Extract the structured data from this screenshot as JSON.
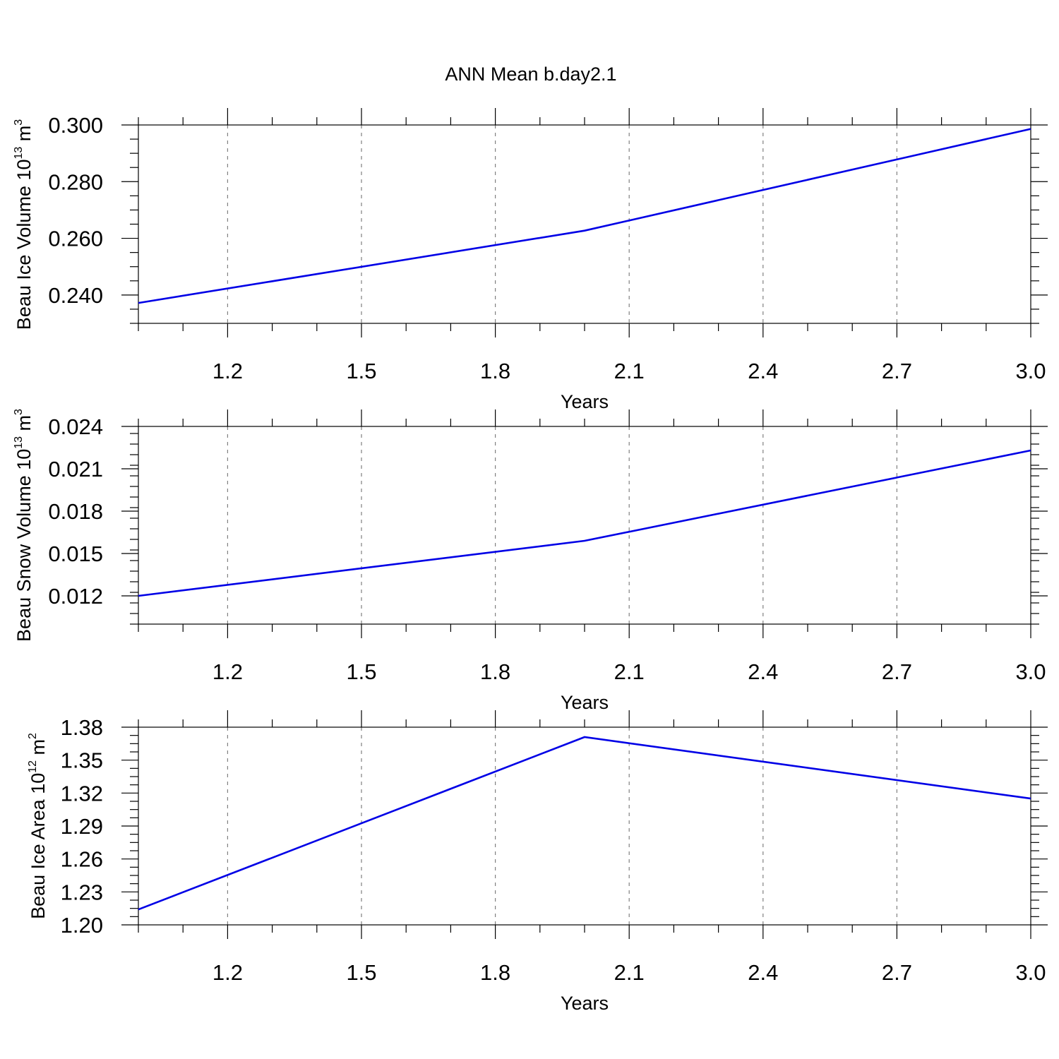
{
  "figure": {
    "title": "ANN Mean b.day2.1"
  },
  "colors": {
    "series": "#0000e6",
    "axis": "#000000",
    "grid": "#808080"
  },
  "chart_data": [
    {
      "type": "line",
      "title": "",
      "xlabel": "Years",
      "ylabel": {
        "base": "Beau Ice Volume 10",
        "exponent": "13",
        "unit": " m",
        "unit_exponent": "3"
      },
      "xlim": [
        1.0,
        3.0
      ],
      "ylim": [
        0.23,
        0.3
      ],
      "x_ticks": [
        "1.2",
        "1.5",
        "1.8",
        "2.1",
        "2.4",
        "2.7",
        "3.0"
      ],
      "y_ticks": [
        "0.240",
        "0.260",
        "0.280",
        "0.300"
      ],
      "grid_x": true,
      "series": [
        {
          "x": [
            1.0,
            2.0,
            3.0
          ],
          "values": [
            0.2372,
            0.2627,
            0.2986
          ]
        }
      ]
    },
    {
      "type": "line",
      "title": "",
      "xlabel": "Years",
      "ylabel": {
        "base": "Beau Snow Volume 10",
        "exponent": "13",
        "unit": " m",
        "unit_exponent": "3"
      },
      "xlim": [
        1.0,
        3.0
      ],
      "ylim": [
        0.01,
        0.024
      ],
      "x_ticks": [
        "1.2",
        "1.5",
        "1.8",
        "2.1",
        "2.4",
        "2.7",
        "3.0"
      ],
      "y_ticks": [
        "0.012",
        "0.015",
        "0.018",
        "0.021",
        "0.024"
      ],
      "grid_x": true,
      "series": [
        {
          "x": [
            1.0,
            2.0,
            3.0
          ],
          "values": [
            0.012,
            0.0159,
            0.0223
          ]
        }
      ]
    },
    {
      "type": "line",
      "title": "",
      "xlabel": "Years",
      "ylabel": {
        "base": "Beau Ice Area 10",
        "exponent": "12",
        "unit": " m",
        "unit_exponent": "2"
      },
      "xlim": [
        1.0,
        3.0
      ],
      "ylim": [
        1.2,
        1.38
      ],
      "x_ticks": [
        "1.2",
        "1.5",
        "1.8",
        "2.1",
        "2.4",
        "2.7",
        "3.0"
      ],
      "y_ticks": [
        "1.20",
        "1.23",
        "1.26",
        "1.29",
        "1.32",
        "1.35",
        "1.38"
      ],
      "grid_x": true,
      "series": [
        {
          "x": [
            1.0,
            2.0,
            3.0
          ],
          "values": [
            1.214,
            1.371,
            1.315
          ]
        }
      ]
    }
  ]
}
